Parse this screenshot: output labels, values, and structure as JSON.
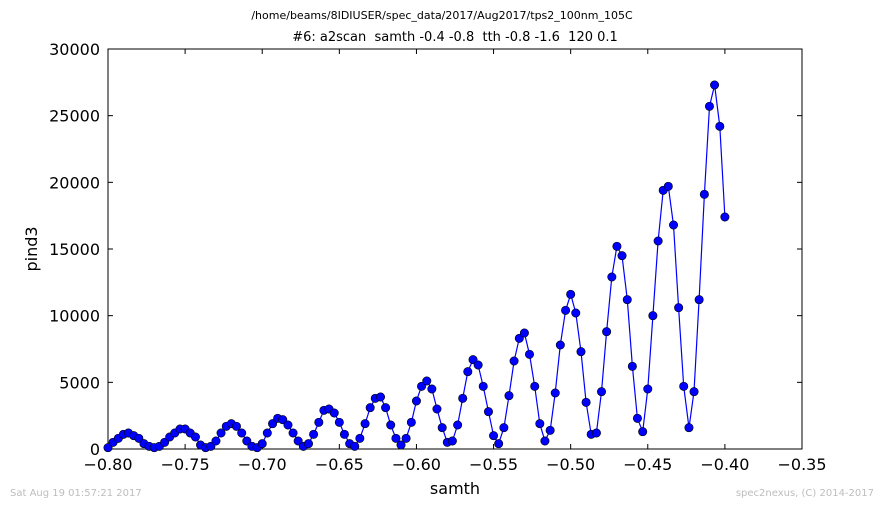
{
  "header": {
    "file_path": "/home/beams/8IDIUSER/spec_data/2017/Aug2017/tps2_100nm_105C",
    "scan_title": "#6: a2scan  samth -0.4 -0.8  tth -0.8 -1.6  120 0.1"
  },
  "footer": {
    "timestamp": "Sat Aug 19 01:57:21 2017",
    "credit": "spec2nexus, (C) 2014-2017"
  },
  "colors": {
    "series": "#0000ff",
    "axes": "#000000",
    "footer": "#bdbdbd"
  },
  "chart_data": {
    "type": "line",
    "marker": "circle",
    "xlabel": "samth",
    "ylabel": "pind3",
    "xlim": [
      -0.8,
      -0.35
    ],
    "ylim": [
      0,
      30000
    ],
    "xticks": [
      -0.8,
      -0.75,
      -0.7,
      -0.65,
      -0.6,
      -0.55,
      -0.5,
      -0.45,
      -0.4,
      -0.35
    ],
    "xtick_labels": [
      "−0.80",
      "−0.75",
      "−0.70",
      "−0.65",
      "−0.60",
      "−0.55",
      "−0.50",
      "−0.45",
      "−0.40",
      "−0.35"
    ],
    "yticks": [
      0,
      5000,
      10000,
      15000,
      20000,
      25000,
      30000
    ],
    "ytick_labels": [
      "0",
      "5000",
      "10000",
      "15000",
      "20000",
      "25000",
      "30000"
    ],
    "grid": false,
    "series": [
      {
        "x": [
          -0.8,
          -0.7967,
          -0.7933,
          -0.79,
          -0.7867,
          -0.7833,
          -0.78,
          -0.7767,
          -0.7733,
          -0.77,
          -0.7667,
          -0.7633,
          -0.76,
          -0.7567,
          -0.7533,
          -0.75,
          -0.7467,
          -0.7433,
          -0.74,
          -0.7367,
          -0.7333,
          -0.73,
          -0.7267,
          -0.7233,
          -0.72,
          -0.7167,
          -0.7133,
          -0.71,
          -0.7067,
          -0.7033,
          -0.7,
          -0.6967,
          -0.6933,
          -0.69,
          -0.6867,
          -0.6833,
          -0.68,
          -0.6767,
          -0.6733,
          -0.67,
          -0.6667,
          -0.6633,
          -0.66,
          -0.6567,
          -0.6533,
          -0.65,
          -0.6467,
          -0.6433,
          -0.64,
          -0.6367,
          -0.6333,
          -0.63,
          -0.6267,
          -0.6233,
          -0.62,
          -0.6167,
          -0.6133,
          -0.61,
          -0.6067,
          -0.6033,
          -0.6,
          -0.5967,
          -0.5933,
          -0.59,
          -0.5867,
          -0.5833,
          -0.58,
          -0.5767,
          -0.5733,
          -0.57,
          -0.5667,
          -0.5633,
          -0.56,
          -0.5567,
          -0.5533,
          -0.55,
          -0.5467,
          -0.5433,
          -0.54,
          -0.5367,
          -0.5333,
          -0.53,
          -0.5267,
          -0.5233,
          -0.52,
          -0.5167,
          -0.5133,
          -0.51,
          -0.5067,
          -0.5033,
          -0.5,
          -0.4967,
          -0.4933,
          -0.49,
          -0.4867,
          -0.4833,
          -0.48,
          -0.4767,
          -0.4733,
          -0.47,
          -0.4667,
          -0.4633,
          -0.46,
          -0.4567,
          -0.4533,
          -0.45,
          -0.4467,
          -0.4433,
          -0.44,
          -0.4367,
          -0.4333,
          -0.43,
          -0.4267,
          -0.4233,
          -0.42,
          -0.4167,
          -0.4133,
          -0.41,
          -0.4067,
          -0.4033,
          -0.4
        ],
        "y": [
          100,
          500,
          800,
          1100,
          1200,
          1000,
          800,
          400,
          200,
          100,
          200,
          500,
          900,
          1200,
          1500,
          1500,
          1200,
          900,
          300,
          100,
          200,
          600,
          1200,
          1700,
          1900,
          1700,
          1200,
          600,
          200,
          100,
          400,
          1200,
          1900,
          2300,
          2200,
          1800,
          1200,
          600,
          200,
          400,
          1100,
          2000,
          2900,
          3000,
          2700,
          2000,
          1100,
          400,
          200,
          800,
          1900,
          3100,
          3800,
          3900,
          3100,
          1800,
          800,
          300,
          800,
          2000,
          3600,
          4700,
          5100,
          4500,
          3000,
          1600,
          500,
          600,
          1800,
          3800,
          5800,
          6700,
          6300,
          4700,
          2800,
          1000,
          400,
          1600,
          4000,
          6600,
          8300,
          8700,
          7100,
          4700,
          1900,
          600,
          1400,
          4200,
          7800,
          10400,
          11600,
          10200,
          7300,
          3500,
          1100,
          1200,
          4300,
          8800,
          12900,
          15200,
          14500,
          11200,
          6200,
          2300,
          1300,
          4500,
          10000,
          15600,
          19400,
          19700,
          16800,
          10600,
          4700,
          1600,
          4300,
          11200,
          19100,
          25700,
          27300,
          24200,
          17400
        ]
      }
    ]
  }
}
